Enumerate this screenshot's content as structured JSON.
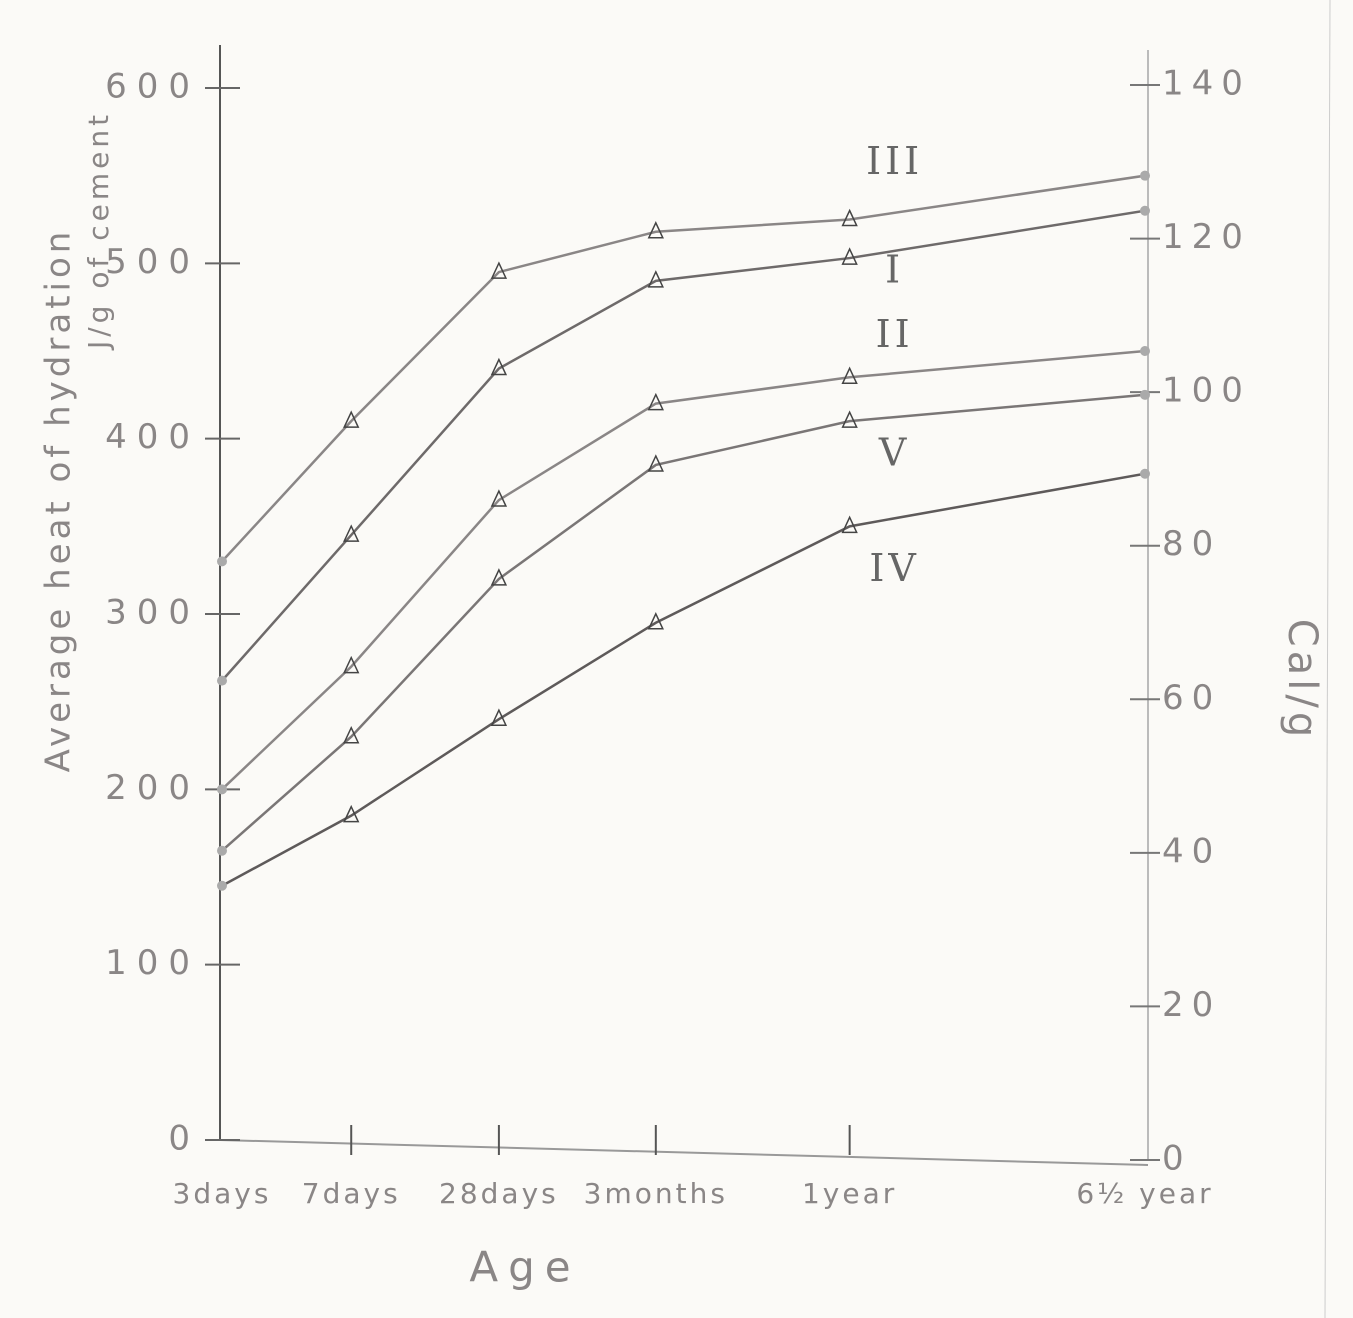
{
  "chart_data": {
    "type": "line",
    "y_label": [
      "Average heat of hydration",
      "J/g of cement"
    ],
    "y2_label": "Cal/g",
    "x_label": "Age",
    "categories": [
      "3days",
      "7days",
      "28days",
      "3months",
      "1year",
      "6½ year"
    ],
    "series": [
      {
        "name": "III",
        "color": "#8a8686",
        "values": [
          330,
          410,
          495,
          518,
          525,
          550
        ]
      },
      {
        "name": "I",
        "color": "#6e6a6a",
        "values": [
          262,
          345,
          440,
          490,
          503,
          530
        ]
      },
      {
        "name": "II",
        "color": "#8a8686",
        "values": [
          200,
          270,
          365,
          420,
          435,
          450
        ]
      },
      {
        "name": "V",
        "color": "#7a7676",
        "values": [
          165,
          230,
          320,
          385,
          410,
          425
        ]
      },
      {
        "name": "IV",
        "color": "#5e5a5a",
        "values": [
          145,
          185,
          240,
          295,
          350,
          380
        ]
      }
    ],
    "ylim": [
      0,
      600
    ],
    "yticks": [
      0,
      100,
      200,
      300,
      400,
      500,
      600
    ],
    "y2lim": [
      0,
      140
    ],
    "y2ticks": [
      0,
      20,
      40,
      60,
      80,
      100,
      120,
      140
    ]
  }
}
